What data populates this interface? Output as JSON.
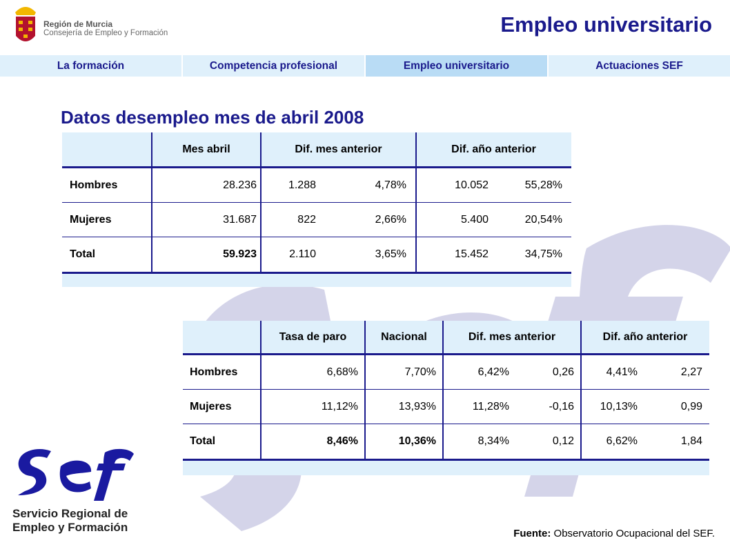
{
  "header": {
    "org_line1": "Región de Murcia",
    "org_line2": "Consejería de Empleo y Formación",
    "title": "Empleo universitario"
  },
  "nav": {
    "tabs": [
      {
        "label": "La formación",
        "active": false
      },
      {
        "label": "Competencia profesional",
        "active": false
      },
      {
        "label": "Empleo universitario",
        "active": true
      },
      {
        "label": "Actuaciones SEF",
        "active": false
      }
    ]
  },
  "section_title": "Datos desempleo mes de abril 2008",
  "table1": {
    "headers": [
      "",
      "Mes abril",
      "Dif. mes anterior",
      "Dif. año anterior"
    ],
    "rows": [
      {
        "label": "Hombres",
        "values": [
          "28.236",
          "1.288",
          "4,78%",
          "10.052",
          "55,28%"
        ]
      },
      {
        "label": "Mujeres",
        "values": [
          "31.687",
          "822",
          "2,66%",
          "5.400",
          "20,54%"
        ]
      },
      {
        "label": "Total",
        "values": [
          "59.923",
          "2.110",
          "3,65%",
          "15.452",
          "34,75%"
        ]
      }
    ]
  },
  "table2": {
    "headers": [
      "",
      "Tasa de paro",
      "Nacional",
      "Dif. mes anterior",
      "Dif. año anterior"
    ],
    "rows": [
      {
        "label": "Hombres",
        "values": [
          "6,68%",
          "7,70%",
          "6,42%",
          "0,26",
          "4,41%",
          "2,27"
        ]
      },
      {
        "label": "Mujeres",
        "values": [
          "11,12%",
          "13,93%",
          "11,28%",
          "-0,16",
          "10,13%",
          "0,99"
        ]
      },
      {
        "label": "Total",
        "values": [
          "8,46%",
          "10,36%",
          "8,34%",
          "0,12",
          "6,62%",
          "1,84"
        ]
      }
    ]
  },
  "source": {
    "prefix": "Fuente:",
    "text": " Observatorio Ocupacional del SEF."
  },
  "sef_logo": {
    "line1": "Servicio Regional de",
    "line2": "Empleo y Formación"
  },
  "colors": {
    "brand_blue": "#1a1a8c",
    "light_blue": "#dff0fb",
    "active_tab": "#b9dcf5"
  }
}
